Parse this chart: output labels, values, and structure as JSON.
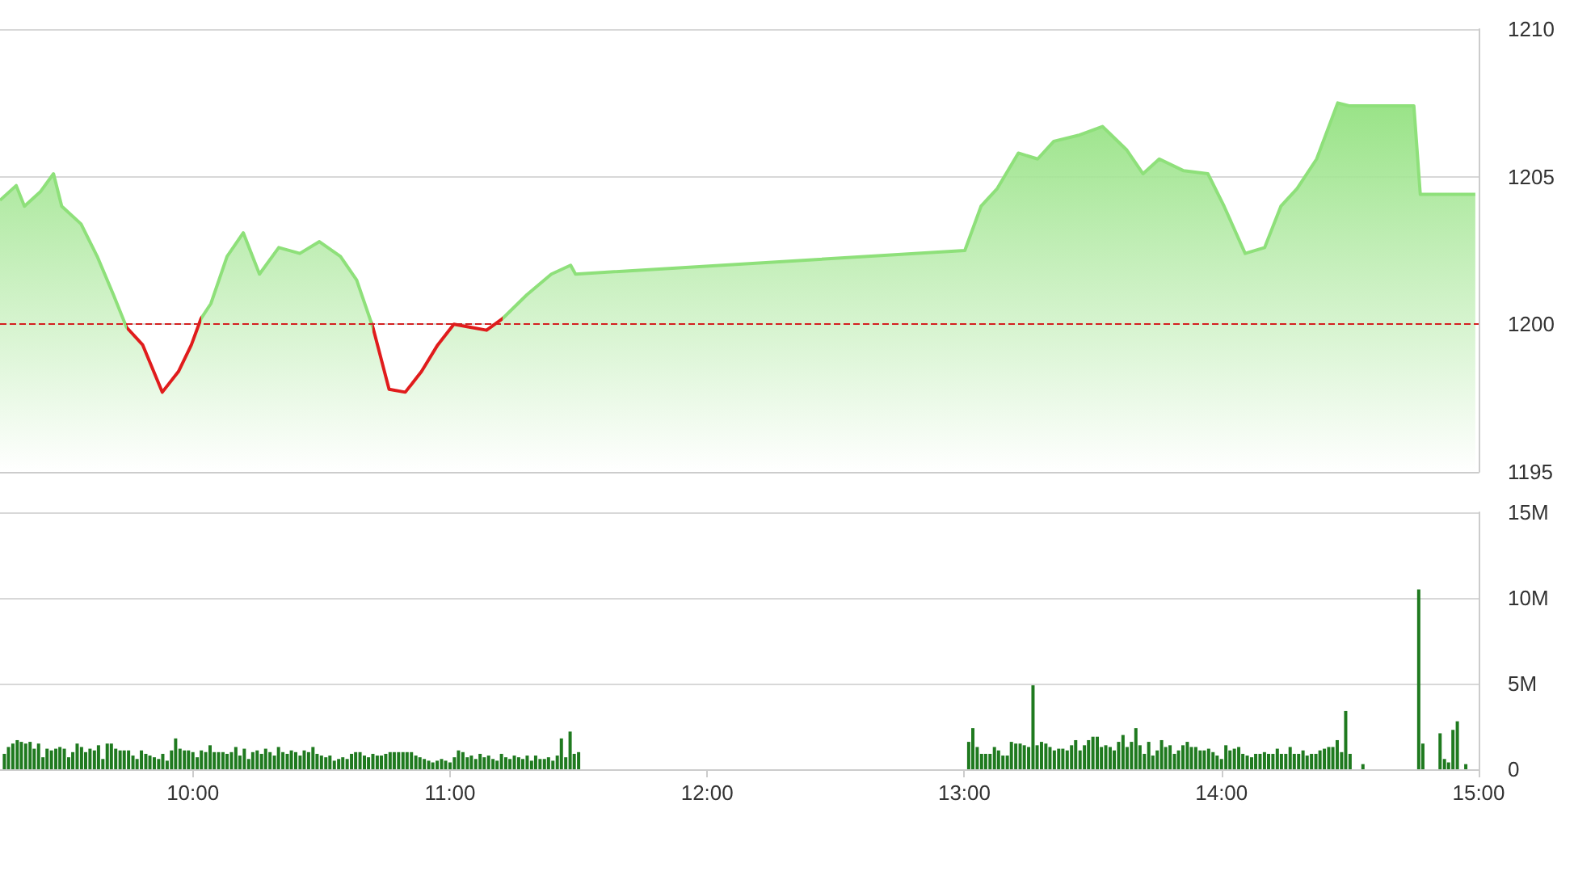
{
  "chart_data": [
    {
      "type": "area",
      "xlim": [
        9.25,
        15
      ],
      "ylim": [
        1195,
        1210
      ],
      "yticks": [
        1195,
        1200,
        1205,
        1210
      ],
      "tick_labels": "y",
      "grid": "y",
      "marker": "none",
      "ref_lines": [
        {
          "axis": "y",
          "value": 1200,
          "color": "#d42020",
          "line_style": "dashed"
        }
      ],
      "series": [
        {
          "color": "#8ee07a",
          "x": [
            9.25,
            9.313,
            9.345,
            9.408,
            9.458,
            9.49,
            9.565,
            9.628,
            9.691,
            9.742,
            9.805,
            9.881,
            9.944,
            9.994,
            10.032,
            10.07,
            10.133,
            10.196,
            10.259,
            10.334,
            10.416,
            10.492,
            10.574,
            10.637,
            10.7,
            10.763,
            10.826,
            10.889,
            10.952,
            11.015,
            11.079,
            11.142,
            11.205,
            11.299,
            11.394,
            11.469,
            11.488,
            13.002,
            13.065,
            13.128,
            13.21,
            13.285,
            13.348,
            13.443,
            13.537,
            13.632,
            13.695,
            13.758,
            13.853,
            13.947,
            14.01,
            14.092,
            14.168,
            14.231,
            14.294,
            14.37,
            14.452,
            14.496,
            14.748,
            14.773,
            14.987
          ],
          "values": [
            1204.2,
            1204.7,
            1204.0,
            1204.5,
            1205.1,
            1204.0,
            1203.4,
            1202.3,
            1201.0,
            1199.9,
            1199.3,
            1197.7,
            1198.4,
            1199.3,
            1200.2,
            1200.7,
            1202.3,
            1203.1,
            1201.7,
            1202.6,
            1202.4,
            1202.8,
            1202.3,
            1201.5,
            1199.9,
            1197.8,
            1197.7,
            1198.4,
            1199.3,
            1200.0,
            1199.9,
            1199.8,
            1200.2,
            1201.0,
            1201.7,
            1202.0,
            1201.7,
            1202.5,
            1204.0,
            1204.6,
            1205.8,
            1205.6,
            1206.2,
            1206.4,
            1206.7,
            1205.9,
            1205.1,
            1205.6,
            1205.2,
            1205.1,
            1204.0,
            1202.4,
            1202.6,
            1204.0,
            1204.6,
            1205.6,
            1207.5,
            1207.4,
            1207.4,
            1204.4,
            1204.4
          ],
          "colors": [
            "#8ee07a",
            "#8ee07a",
            "#8ee07a",
            "#8ee07a",
            "#8ee07a",
            "#8ee07a",
            "#8ee07a",
            "#8ee07a",
            "#8ee07a",
            "#e01c1c",
            "#e01c1c",
            "#e01c1c",
            "#e01c1c",
            "#e01c1c",
            "#8ee07a",
            "#8ee07a",
            "#8ee07a",
            "#8ee07a",
            "#8ee07a",
            "#8ee07a",
            "#8ee07a",
            "#8ee07a",
            "#8ee07a",
            "#8ee07a",
            "#e01c1c",
            "#e01c1c",
            "#e01c1c",
            "#e01c1c",
            "#e01c1c",
            "#e01c1c",
            "#e01c1c",
            "#e01c1c",
            "#8ee07a",
            "#8ee07a",
            "#8ee07a",
            "#8ee07a",
            "#8ee07a",
            "#8ee07a",
            "#8ee07a",
            "#8ee07a",
            "#8ee07a",
            "#8ee07a",
            "#8ee07a",
            "#8ee07a",
            "#8ee07a",
            "#8ee07a",
            "#8ee07a",
            "#8ee07a",
            "#8ee07a",
            "#8ee07a",
            "#8ee07a",
            "#8ee07a",
            "#8ee07a",
            "#8ee07a",
            "#8ee07a",
            "#8ee07a",
            "#8ee07a",
            "#8ee07a",
            "#8ee07a",
            "#8ee07a",
            "#8ee07a"
          ]
        }
      ]
    },
    {
      "type": "bar",
      "xlim": [
        9.25,
        15
      ],
      "xticks": [
        {
          "value": 10,
          "label": "10:00"
        },
        {
          "value": 11,
          "label": "11:00"
        },
        {
          "value": 12,
          "label": "12:00"
        },
        {
          "value": 13,
          "label": "13:00"
        },
        {
          "value": 14,
          "label": "14:00"
        },
        {
          "value": 15,
          "label": "15:00"
        }
      ],
      "ylim": [
        0,
        15
      ],
      "yticks": [
        {
          "value": 0,
          "label": "0"
        },
        {
          "value": 5,
          "label": "5M"
        },
        {
          "value": 10,
          "label": "10M"
        },
        {
          "value": 15,
          "label": "15M"
        }
      ],
      "grid": "y",
      "series": [
        {
          "color": "#1f7a1f",
          "x": [
            9.267,
            9.283,
            9.3,
            9.317,
            9.333,
            9.35,
            9.367,
            9.383,
            9.4,
            9.417,
            9.433,
            9.45,
            9.467,
            9.483,
            9.5,
            9.517,
            9.533,
            9.55,
            9.567,
            9.583,
            9.6,
            9.617,
            9.633,
            9.65,
            9.667,
            9.683,
            9.7,
            9.717,
            9.733,
            9.75,
            9.767,
            9.783,
            9.8,
            9.817,
            9.833,
            9.85,
            9.867,
            9.883,
            9.9,
            9.917,
            9.933,
            9.95,
            9.967,
            9.983,
            10.0,
            10.017,
            10.033,
            10.05,
            10.067,
            10.083,
            10.1,
            10.117,
            10.133,
            10.15,
            10.167,
            10.183,
            10.2,
            10.217,
            10.233,
            10.25,
            10.267,
            10.283,
            10.3,
            10.317,
            10.333,
            10.35,
            10.367,
            10.383,
            10.4,
            10.417,
            10.433,
            10.45,
            10.467,
            10.483,
            10.5,
            10.517,
            10.533,
            10.55,
            10.567,
            10.583,
            10.6,
            10.617,
            10.633,
            10.65,
            10.667,
            10.683,
            10.7,
            10.717,
            10.733,
            10.75,
            10.767,
            10.783,
            10.8,
            10.817,
            10.833,
            10.85,
            10.867,
            10.883,
            10.9,
            10.917,
            10.933,
            10.95,
            10.967,
            10.983,
            11.0,
            11.017,
            11.033,
            11.05,
            11.067,
            11.083,
            11.1,
            11.117,
            11.133,
            11.15,
            11.167,
            11.183,
            11.2,
            11.217,
            11.233,
            11.25,
            11.267,
            11.283,
            11.3,
            11.317,
            11.333,
            11.35,
            11.367,
            11.383,
            11.4,
            11.417,
            11.433,
            11.45,
            11.467,
            11.483,
            11.5,
            13.017,
            13.033,
            13.05,
            13.067,
            13.083,
            13.1,
            13.117,
            13.133,
            13.15,
            13.167,
            13.183,
            13.2,
            13.217,
            13.233,
            13.25,
            13.267,
            13.283,
            13.3,
            13.317,
            13.333,
            13.35,
            13.367,
            13.383,
            13.4,
            13.417,
            13.433,
            13.45,
            13.467,
            13.483,
            13.5,
            13.517,
            13.533,
            13.55,
            13.567,
            13.583,
            13.6,
            13.617,
            13.633,
            13.65,
            13.667,
            13.683,
            13.7,
            13.717,
            13.733,
            13.75,
            13.767,
            13.783,
            13.8,
            13.817,
            13.833,
            13.85,
            13.867,
            13.883,
            13.9,
            13.917,
            13.933,
            13.95,
            13.967,
            13.983,
            14.0,
            14.017,
            14.033,
            14.05,
            14.067,
            14.083,
            14.1,
            14.117,
            14.133,
            14.15,
            14.167,
            14.183,
            14.2,
            14.217,
            14.233,
            14.25,
            14.267,
            14.283,
            14.3,
            14.317,
            14.333,
            14.35,
            14.367,
            14.383,
            14.4,
            14.417,
            14.433,
            14.45,
            14.467,
            14.483,
            14.5,
            14.55,
            14.767,
            14.783,
            14.85,
            14.867,
            14.883,
            14.9,
            14.917,
            14.95
          ],
          "values": [
            0.9,
            1.3,
            1.5,
            1.7,
            1.6,
            1.5,
            1.6,
            1.2,
            1.5,
            0.7,
            1.2,
            1.1,
            1.2,
            1.3,
            1.2,
            0.7,
            1.0,
            1.5,
            1.3,
            1.0,
            1.2,
            1.1,
            1.4,
            0.6,
            1.5,
            1.5,
            1.2,
            1.1,
            1.1,
            1.1,
            0.8,
            0.6,
            1.1,
            0.9,
            0.8,
            0.7,
            0.6,
            0.9,
            0.5,
            1.1,
            1.8,
            1.2,
            1.1,
            1.1,
            1.0,
            0.7,
            1.1,
            1.0,
            1.4,
            1.0,
            1.0,
            1.0,
            0.9,
            1.0,
            1.3,
            0.8,
            1.2,
            0.6,
            1.0,
            1.1,
            0.9,
            1.2,
            1.0,
            0.8,
            1.3,
            1.0,
            0.9,
            1.1,
            1.0,
            0.8,
            1.1,
            1.0,
            1.3,
            0.9,
            0.8,
            0.7,
            0.8,
            0.5,
            0.6,
            0.7,
            0.6,
            0.9,
            1.0,
            1.0,
            0.8,
            0.7,
            0.9,
            0.8,
            0.8,
            0.9,
            1.0,
            1.0,
            1.0,
            1.0,
            1.0,
            1.0,
            0.8,
            0.7,
            0.6,
            0.5,
            0.4,
            0.5,
            0.6,
            0.5,
            0.4,
            0.7,
            1.1,
            1.0,
            0.7,
            0.8,
            0.6,
            0.9,
            0.7,
            0.8,
            0.6,
            0.5,
            0.9,
            0.7,
            0.6,
            0.8,
            0.7,
            0.6,
            0.8,
            0.5,
            0.8,
            0.6,
            0.6,
            0.7,
            0.5,
            0.8,
            1.8,
            0.7,
            2.2,
            0.9,
            1.0,
            1.6,
            2.4,
            1.3,
            0.9,
            0.9,
            0.9,
            1.3,
            1.1,
            0.8,
            0.8,
            1.6,
            1.5,
            1.5,
            1.4,
            1.3,
            4.9,
            1.4,
            1.6,
            1.5,
            1.3,
            1.1,
            1.2,
            1.2,
            1.1,
            1.4,
            1.7,
            1.1,
            1.4,
            1.7,
            1.9,
            1.9,
            1.3,
            1.4,
            1.3,
            1.1,
            1.6,
            2.0,
            1.3,
            1.6,
            2.4,
            1.4,
            0.9,
            1.6,
            0.8,
            1.1,
            1.7,
            1.3,
            1.4,
            0.9,
            1.1,
            1.4,
            1.6,
            1.3,
            1.3,
            1.1,
            1.1,
            1.2,
            1.0,
            0.8,
            0.6,
            1.4,
            1.1,
            1.2,
            1.3,
            0.9,
            0.8,
            0.7,
            0.9,
            0.9,
            1.0,
            0.9,
            0.9,
            1.2,
            0.9,
            0.9,
            1.3,
            0.9,
            0.9,
            1.1,
            0.8,
            0.9,
            0.9,
            1.1,
            1.2,
            1.3,
            1.3,
            1.7,
            1.0,
            3.4,
            0.9,
            0.3,
            10.5,
            1.5,
            2.1,
            0.6,
            0.4,
            2.3,
            2.8,
            0.3
          ]
        }
      ]
    }
  ]
}
